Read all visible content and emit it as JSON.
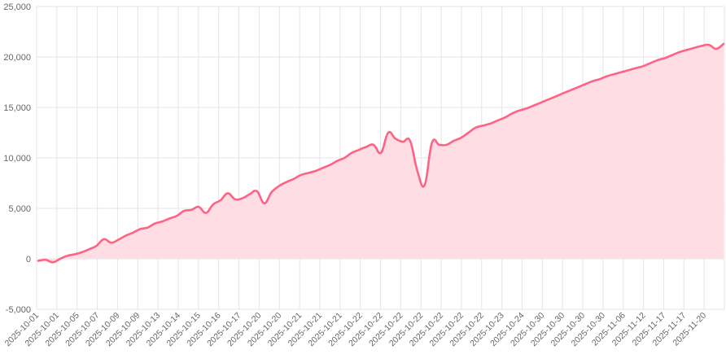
{
  "chart_data": {
    "type": "area",
    "title": "",
    "xlabel": "",
    "ylabel": "",
    "grid": true,
    "legend": "none",
    "color": "#ff6384",
    "fill_color": "#ffdde4",
    "ylim": [
      -5000,
      25000
    ],
    "y_ticks": [
      -5000,
      0,
      5000,
      10000,
      15000,
      20000,
      25000
    ],
    "y_tick_labels": [
      "-5,000",
      "0",
      "5,000",
      "10,000",
      "15,000",
      "20,000",
      "25,000"
    ],
    "x_tick_labels": [
      "2025-10-01",
      "2025-10-01",
      "2025-10-05",
      "2025-10-07",
      "2025-10-09",
      "2025-10-09",
      "2025-10-13",
      "2025-10-14",
      "2025-10-15",
      "2025-10-16",
      "2025-10-17",
      "2025-10-20",
      "2025-10-20",
      "2025-10-21",
      "2025-10-21",
      "2025-10-21",
      "2025-10-22",
      "2025-10-22",
      "2025-10-22",
      "2025-10-22",
      "2025-10-22",
      "2025-10-22",
      "2025-10-22",
      "2025-10-23",
      "2025-10-24",
      "2025-10-30",
      "2025-10-30",
      "2025-10-30",
      "2025-10-30",
      "2025-11-06",
      "2025-11-12",
      "2025-11-17",
      "2025-11-17",
      "2025-11-20"
    ],
    "series": [
      {
        "values": [
          -200,
          -100,
          -350,
          0,
          300,
          450,
          650,
          950,
          1300,
          1950,
          1600,
          1900,
          2300,
          2600,
          2950,
          3100,
          3500,
          3700,
          4000,
          4250,
          4750,
          4850,
          5150,
          4550,
          5400,
          5800,
          6500,
          5900,
          6000,
          6400,
          6700,
          5500,
          6600,
          7200,
          7600,
          7900,
          8300,
          8500,
          8700,
          9000,
          9300,
          9700,
          10000,
          10500,
          10800,
          11100,
          11300,
          10500,
          12500,
          11900,
          11600,
          11700,
          8700,
          7300,
          11500,
          11300,
          11300,
          11700,
          12000,
          12500,
          13000,
          13200,
          13400,
          13700,
          14000,
          14400,
          14700,
          14900,
          15200,
          15500,
          15800,
          16100,
          16400,
          16700,
          17000,
          17300,
          17600,
          17800,
          18100,
          18300,
          18500,
          18700,
          18900,
          19100,
          19400,
          19700,
          19900,
          20200,
          20500,
          20700,
          20900,
          21100,
          21200,
          20800,
          21300
        ]
      }
    ]
  }
}
